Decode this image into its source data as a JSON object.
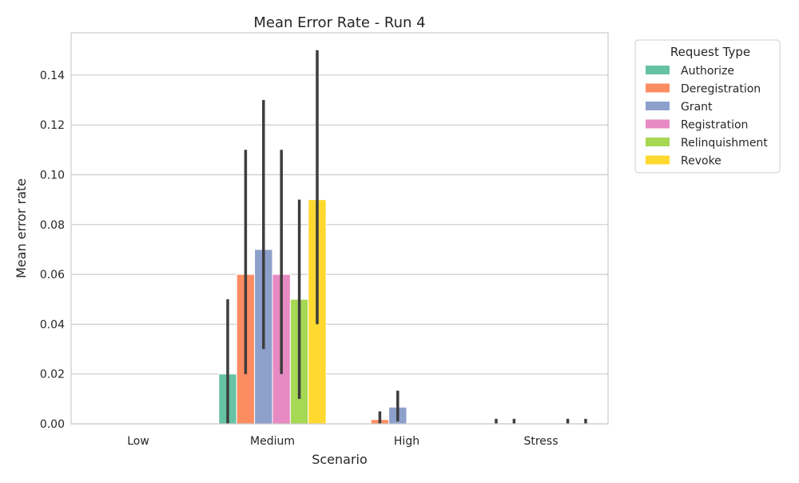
{
  "chart_data": {
    "type": "bar",
    "title": "Mean Error Rate - Run 4",
    "xlabel": "Scenario",
    "ylabel": "Mean error rate",
    "categories": [
      "Low",
      "Medium",
      "High",
      "Stress"
    ],
    "ylim": [
      0,
      0.157
    ],
    "yticks": [
      "0.00",
      "0.02",
      "0.04",
      "0.06",
      "0.08",
      "0.10",
      "0.12",
      "0.14"
    ],
    "grid": true,
    "legend": {
      "title": "Request Type",
      "placement": "outside-top-right"
    },
    "series": [
      {
        "name": "Authorize",
        "color": "#66c2a5",
        "values": [
          0,
          0.02,
          0,
          0
        ],
        "ci": [
          [
            0,
            0
          ],
          [
            0,
            0.05
          ],
          [
            0,
            0
          ],
          [
            0,
            0.002
          ]
        ]
      },
      {
        "name": "Deregistration",
        "color": "#fc8d62",
        "values": [
          0,
          0.06,
          0.0017,
          0
        ],
        "ci": [
          [
            0,
            0
          ],
          [
            0.02,
            0.11
          ],
          [
            0,
            0.005
          ],
          [
            0,
            0.002
          ]
        ]
      },
      {
        "name": "Grant",
        "color": "#8da0cb",
        "values": [
          0,
          0.07,
          0.0067,
          0
        ],
        "ci": [
          [
            0,
            0
          ],
          [
            0.03,
            0.13
          ],
          [
            0.001,
            0.0133
          ],
          [
            0,
            0
          ]
        ]
      },
      {
        "name": "Registration",
        "color": "#e78ac3",
        "values": [
          0,
          0.06,
          0,
          0
        ],
        "ci": [
          [
            0,
            0
          ],
          [
            0.02,
            0.11
          ],
          [
            0,
            0
          ],
          [
            0,
            0
          ]
        ]
      },
      {
        "name": "Relinquishment",
        "color": "#a6d854",
        "values": [
          0,
          0.05,
          0,
          0
        ],
        "ci": [
          [
            0,
            0
          ],
          [
            0.01,
            0.09
          ],
          [
            0,
            0
          ],
          [
            0,
            0.002
          ]
        ]
      },
      {
        "name": "Revoke",
        "color": "#ffd92f",
        "values": [
          0,
          0.09,
          0,
          0
        ],
        "ci": [
          [
            0,
            0
          ],
          [
            0.04,
            0.15
          ],
          [
            0,
            0
          ],
          [
            0,
            0.002
          ]
        ]
      }
    ]
  }
}
